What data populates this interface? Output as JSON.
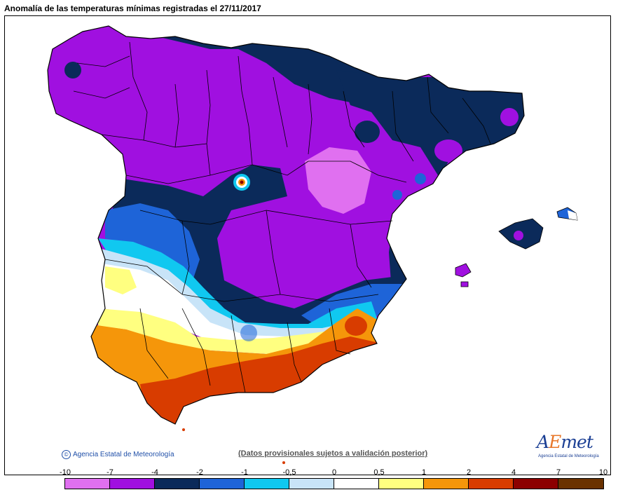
{
  "title": "Anomalía de las temperaturas mínimas registradas el 27/11/2017",
  "credit": "Agencia Estatal de Meteorología",
  "disclaimer": "(Datos provisionales sujetos a validación posterior)",
  "logo": {
    "text_a": "A",
    "text_em": "E",
    "text_met": "met",
    "sub": "Agencia Estatal de Meteorología"
  },
  "legend": {
    "labels": [
      "-10",
      "-7",
      "-4",
      "-2",
      "-1",
      "-0,5",
      "0",
      "0,5",
      "1",
      "2",
      "4",
      "7",
      "10"
    ],
    "colors": [
      "#e070f0",
      "#a010e0",
      "#0b2a5a",
      "#1e64d8",
      "#10c8f0",
      "#c8e4f8",
      "#ffffff",
      "#ffff80",
      "#f5960a",
      "#d83c00",
      "#8c0000",
      "#6a3200"
    ]
  },
  "colors": {
    "light_violet": "#e070f0",
    "violet": "#a010e0",
    "navy": "#0b2a5a",
    "blue": "#1e64d8",
    "cyan": "#10c8f0",
    "pale_blue": "#c8e4f8",
    "white": "#ffffff",
    "yellow": "#ffff80",
    "orange": "#f5960a",
    "red_orange": "#d83c00"
  }
}
